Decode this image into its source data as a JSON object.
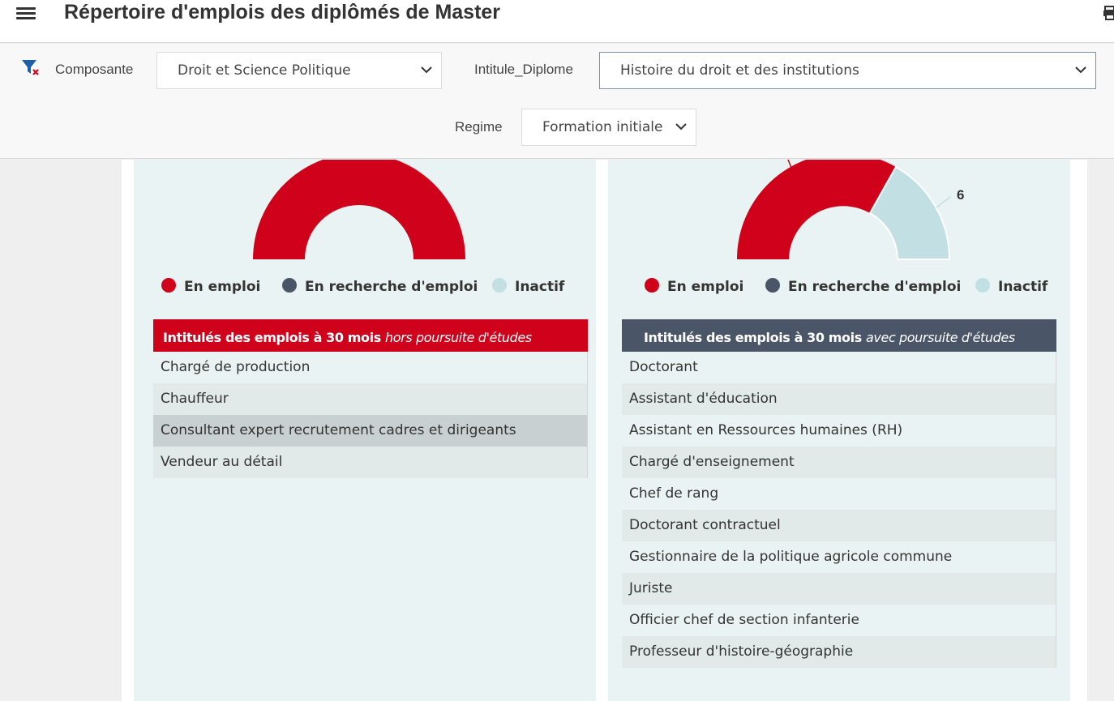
{
  "header": {
    "title": "Répertoire d'emplois des diplômés de Master",
    "menu_icon": "hamburger-menu-icon",
    "print_icon": "printer-icon"
  },
  "filters": {
    "clear_icon": "filter-clear-icon",
    "composante_label": "Composante",
    "composante_value": "Droit et Science Politique",
    "diplome_label": "Intitule_Diplome",
    "diplome_value": "Histoire du droit et des institutions",
    "regime_label": "Regime",
    "regime_value": "Formation initiale"
  },
  "colors": {
    "en_emploi": "#d0021b",
    "en_recherche": "#4a5568",
    "inactif": "#c2e0e3",
    "header_left": "#d0021b",
    "header_right": "#4a5568"
  },
  "legend": {
    "en_emploi": "En emploi",
    "en_recherche": "En recherche d'emploi",
    "inactif": "Inactif"
  },
  "left_panel": {
    "chart": {
      "type": "donut-gauge",
      "slices": [
        {
          "name": "En emploi",
          "value": 1.0
        }
      ]
    },
    "table_title": "Intitulés des emplois à 30 mois",
    "table_subtitle": "hors poursuite d'études",
    "jobs": [
      "Chargé de production",
      "Chauffeur",
      "Consultant expert recrutement cadres et dirigeants",
      "Vendeur au détail"
    ]
  },
  "right_panel": {
    "chart": {
      "type": "donut-gauge",
      "slices": [
        {
          "name": "En emploi",
          "fraction": 0.695
        },
        {
          "name": "Inactif",
          "value": 6,
          "fraction": 0.305
        }
      ],
      "inactif_label": "6"
    },
    "table_title": "Intitulés des emplois à 30 mois",
    "table_subtitle": "avec poursuite d'études",
    "jobs": [
      "Doctorant",
      "Assistant d'éducation",
      "Assistant en Ressources humaines (RH)",
      "Chargé d'enseignement",
      "Chef de rang",
      "Doctorant contractuel",
      "Gestionnaire de la politique agricole commune",
      "Juriste",
      "Officier chef de section infanterie",
      "Professeur d'histoire-géographie"
    ]
  }
}
